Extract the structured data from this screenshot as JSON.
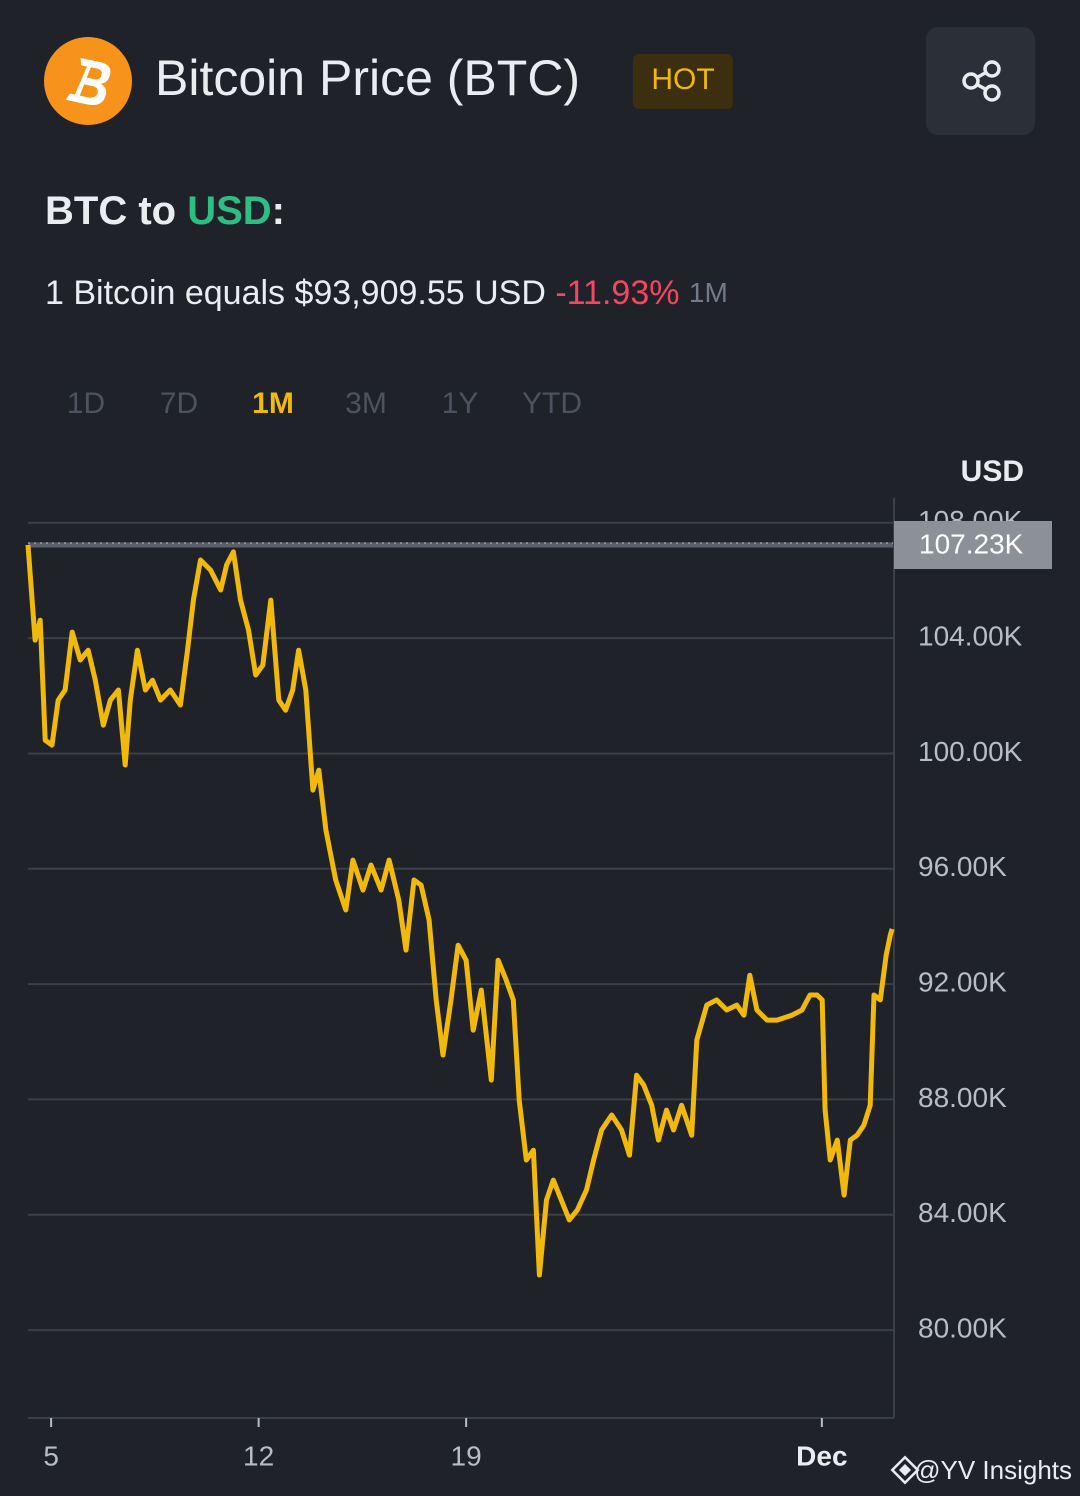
{
  "header": {
    "title": "Bitcoin Price (BTC)",
    "badge": "HOT",
    "pair_prefix": "BTC to ",
    "pair_currency": "USD",
    "pair_suffix": ":",
    "rate_text": "1 Bitcoin equals $93,909.55 USD",
    "change": "-11.93%",
    "change_period": "1M"
  },
  "time_ranges": [
    "1D",
    "7D",
    "1M",
    "3M",
    "1Y",
    "YTD"
  ],
  "selected_range_index": 2,
  "watermark": "@YV Insights",
  "chart_data": {
    "type": "line",
    "color": "#f0b90b",
    "y_axis_label": "USD",
    "grid": true,
    "x": [
      4.22,
      4.46,
      4.63,
      4.8,
      5.03,
      5.24,
      5.47,
      5.71,
      5.98,
      6.25,
      6.49,
      6.76,
      7.0,
      7.27,
      7.5,
      7.67,
      7.91,
      8.18,
      8.42,
      8.69,
      9.02,
      9.36,
      9.6,
      9.8,
      10.04,
      10.38,
      10.72,
      10.92,
      11.15,
      11.39,
      11.66,
      11.9,
      12.14,
      12.41,
      12.68,
      12.91,
      13.15,
      13.35,
      13.59,
      13.83,
      14.03,
      14.27,
      14.6,
      14.94,
      15.18,
      15.52,
      15.79,
      16.13,
      16.4,
      16.73,
      16.97,
      17.24,
      17.48,
      17.75,
      17.99,
      18.22,
      18.49,
      18.73,
      19.0,
      19.24,
      19.51,
      19.85,
      20.08,
      20.35,
      20.59,
      20.79,
      21.03,
      21.27,
      21.47,
      21.71,
      21.94,
      22.21,
      22.48,
      22.75,
      23.06,
      23.3,
      23.57,
      23.91,
      24.24,
      24.51,
      24.75,
      24.99,
      25.26,
      25.49,
      25.76,
      26.0,
      26.27,
      26.61,
      26.78,
      27.12,
      27.45,
      27.79,
      28.13,
      28.37,
      28.57,
      28.81,
      29.15,
      29.49,
      29.99,
      30.33,
      30.6,
      30.84,
      31.01,
      31.11,
      31.28,
      31.52,
      31.75,
      31.96,
      32.19,
      32.42,
      32.63,
      32.76,
      32.97,
      33.17,
      33.31,
      33.37
    ],
    "values": [
      107.23,
      103.93,
      104.62,
      100.46,
      100.29,
      101.85,
      102.2,
      104.21,
      103.24,
      103.58,
      102.54,
      100.98,
      101.85,
      102.2,
      99.6,
      101.85,
      103.58,
      102.2,
      102.54,
      101.85,
      102.2,
      101.68,
      103.58,
      105.32,
      106.71,
      106.36,
      105.67,
      106.54,
      106.99,
      105.32,
      104.28,
      102.72,
      103.06,
      105.32,
      101.85,
      101.5,
      102.2,
      103.58,
      102.2,
      98.73,
      99.42,
      97.34,
      95.61,
      94.57,
      96.3,
      95.26,
      96.13,
      95.26,
      96.3,
      94.91,
      93.18,
      95.61,
      95.43,
      94.22,
      91.45,
      89.54,
      91.45,
      93.35,
      92.83,
      90.4,
      91.79,
      88.67,
      92.83,
      92.14,
      91.45,
      87.98,
      85.9,
      86.24,
      81.91,
      84.51,
      85.2,
      84.51,
      83.82,
      84.16,
      84.86,
      85.9,
      86.94,
      87.46,
      86.94,
      86.07,
      88.84,
      88.5,
      87.8,
      86.59,
      87.63,
      86.94,
      87.8,
      86.76,
      90.06,
      91.27,
      91.45,
      91.1,
      91.27,
      90.92,
      92.31,
      91.1,
      90.75,
      90.75,
      90.92,
      91.1,
      91.62,
      91.62,
      91.45,
      87.63,
      85.9,
      86.59,
      84.68,
      86.59,
      86.76,
      87.11,
      87.8,
      91.62,
      91.45,
      93.01,
      93.7,
      93.91
    ],
    "xlim": [
      4.22,
      33.4
    ],
    "xticks": [
      5,
      12,
      19,
      {
        "value": 31,
        "label": "Dec"
      }
    ],
    "ylim": [
      76.95,
      108.86
    ],
    "yticks": [
      {
        "value": 80,
        "label": "80.00K"
      },
      {
        "value": 84,
        "label": "84.00K"
      },
      {
        "value": 88,
        "label": "88.00K"
      },
      {
        "value": 92,
        "label": "92.00K"
      },
      {
        "value": 96,
        "label": "96.00K"
      },
      {
        "value": 100,
        "label": "100.00K"
      },
      {
        "value": 104,
        "label": "104.00K"
      },
      {
        "value": 108,
        "label": "108.00K"
      }
    ],
    "high_marker": {
      "value": 107.23,
      "label": "107.23K"
    }
  }
}
